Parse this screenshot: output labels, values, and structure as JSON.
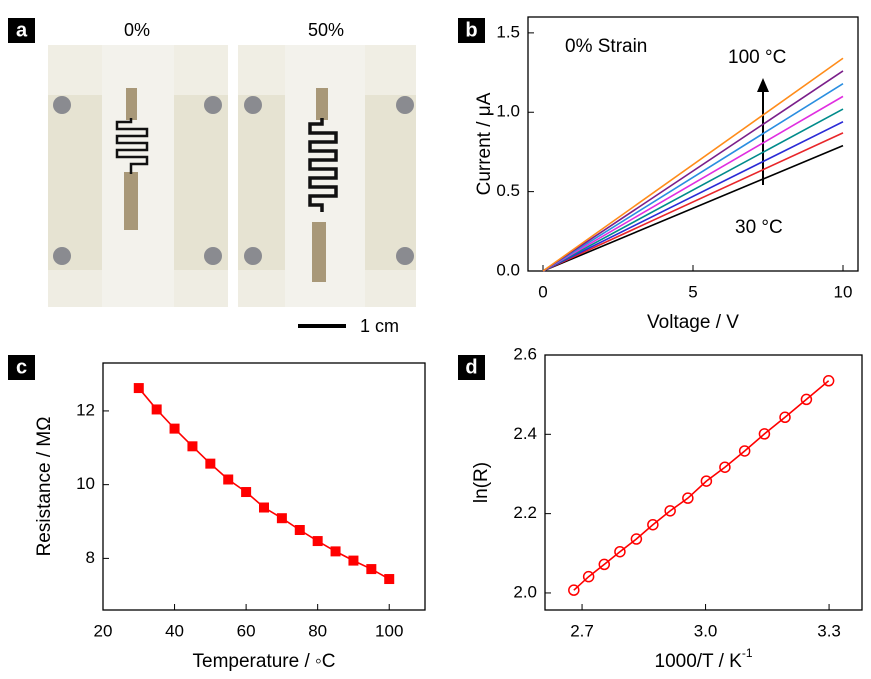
{
  "photo_panel": {
    "panel_label": "a",
    "captions": [
      "0%",
      "50%"
    ],
    "scale_bar": "1 cm"
  },
  "chart_data": [
    {
      "type": "line",
      "panel_label": "b",
      "xlabel": "Voltage / V",
      "ylabel": "Current / μA",
      "annotations": [
        "0% Strain",
        "100 °C",
        "30 °C"
      ],
      "x": [
        0,
        10
      ],
      "series": [
        {
          "color": "#000000",
          "values": [
            0,
            0.79
          ]
        },
        {
          "color": "#e8262a",
          "values": [
            0,
            0.87
          ]
        },
        {
          "color": "#2b2bd6",
          "values": [
            0,
            0.94
          ]
        },
        {
          "color": "#008b8b",
          "values": [
            0,
            1.02
          ]
        },
        {
          "color": "#e02ee0",
          "values": [
            0,
            1.1
          ]
        },
        {
          "color": "#2a8ee0",
          "values": [
            0,
            1.18
          ]
        },
        {
          "color": "#7b1f8a",
          "values": [
            0,
            1.26
          ]
        },
        {
          "color": "#ff8c1a",
          "values": [
            0,
            1.34
          ]
        }
      ],
      "xlim": [
        -0.5,
        10.5
      ],
      "ylim": [
        0,
        1.6
      ],
      "xticks": [
        0,
        5,
        10
      ],
      "yticks": [
        {
          "value": 0,
          "label": "0.0"
        },
        0.5,
        {
          "value": 1,
          "label": "1.0"
        },
        1.5
      ]
    },
    {
      "type": "line",
      "panel_label": "c",
      "xlabel": "Temperature / ◦C",
      "ylabel": "Resistance / MΩ",
      "marker": "square",
      "x": [
        30,
        35,
        40,
        45,
        50,
        55,
        60,
        65,
        70,
        75,
        80,
        85,
        90,
        95,
        100
      ],
      "series": [
        {
          "color": "#ff0000",
          "values": [
            12.62,
            12.04,
            11.52,
            11.04,
            10.57,
            10.14,
            9.8,
            9.38,
            9.09,
            8.77,
            8.47,
            8.19,
            7.94,
            7.71,
            7.44
          ]
        }
      ],
      "xlim": [
        20,
        110
      ],
      "ylim": [
        6.6,
        13.3
      ],
      "xticks": [
        20,
        40,
        60,
        80,
        100
      ],
      "yticks": [
        8,
        10,
        12
      ]
    },
    {
      "type": "line",
      "panel_label": "d",
      "xlabel": "1000/T / K",
      "xlabel_superscript": "-1",
      "ylabel": "ln(R)",
      "marker": "circle-open",
      "x": [
        3.299,
        3.245,
        3.193,
        3.143,
        3.095,
        3.047,
        3.002,
        2.957,
        2.914,
        2.872,
        2.832,
        2.792,
        2.754,
        2.716,
        2.68
      ],
      "series": [
        {
          "color": "#ff0000",
          "values": [
            2.535,
            2.488,
            2.443,
            2.401,
            2.358,
            2.317,
            2.282,
            2.239,
            2.207,
            2.172,
            2.136,
            2.104,
            2.072,
            2.041,
            2.007
          ]
        }
      ],
      "xlim": [
        2.61,
        3.38
      ],
      "ylim": [
        1.957,
        2.6
      ],
      "xticks": [
        2.7,
        {
          "value": 3,
          "label": "3.0"
        },
        3.3
      ],
      "yticks": [
        {
          "value": 2,
          "label": "2.0"
        },
        2.2,
        2.4,
        2.6
      ]
    }
  ]
}
